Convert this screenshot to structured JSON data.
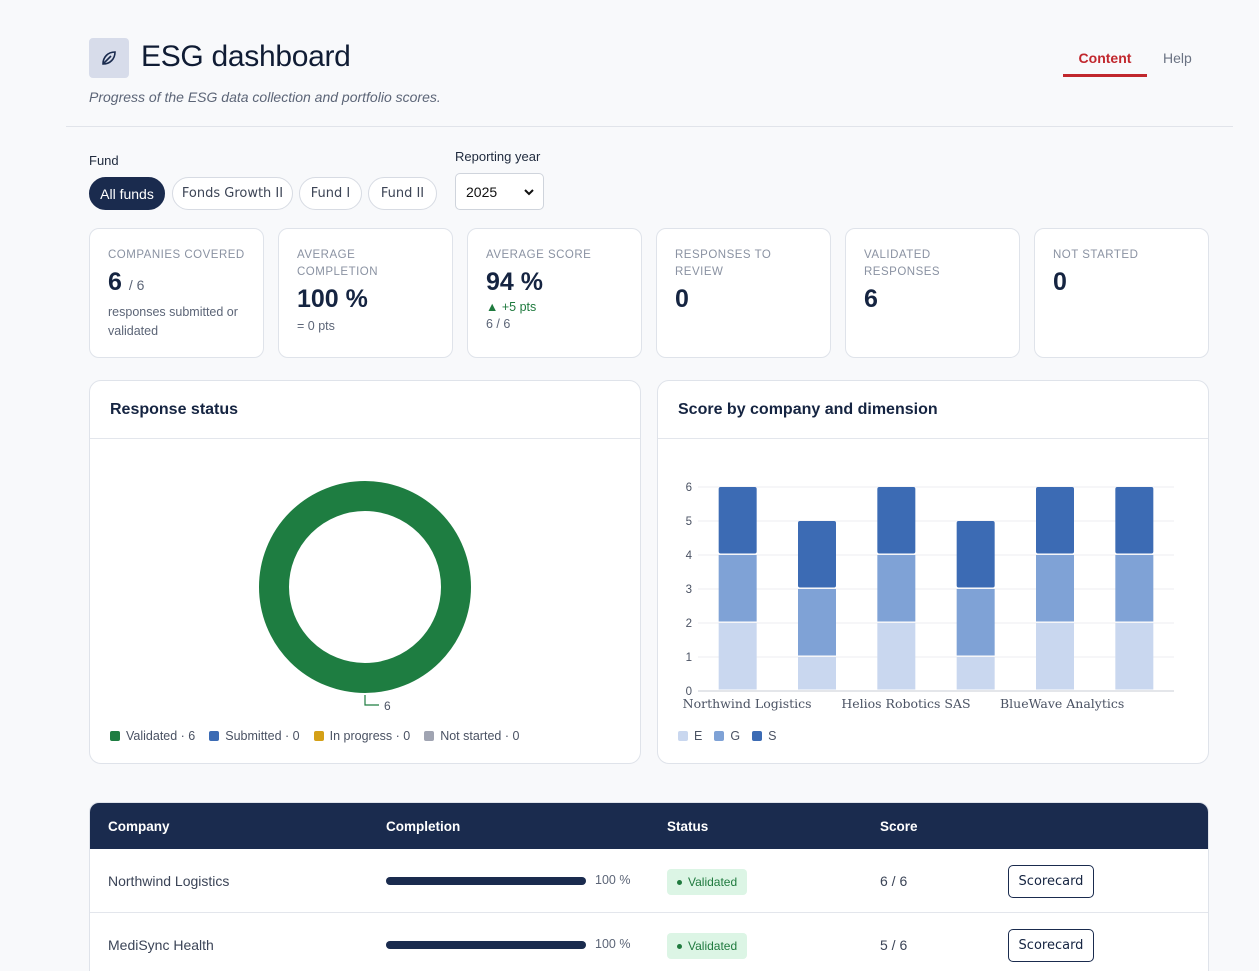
{
  "header": {
    "title": "ESG dashboard",
    "subtitle": "Progress of the ESG data collection and portfolio scores.",
    "logo_icon": "leaf-icon",
    "tabs": [
      {
        "label": "Content",
        "active": true
      },
      {
        "label": "Help",
        "active": false
      }
    ]
  },
  "filters": {
    "fund_label": "Fund",
    "funds": [
      {
        "label": "All funds",
        "active": true
      },
      {
        "label": "Fonds Growth II",
        "active": false
      },
      {
        "label": "Fund I",
        "active": false
      },
      {
        "label": "Fund II",
        "active": false
      }
    ],
    "year_label": "Reporting year",
    "year_value": "2025"
  },
  "kpis": [
    {
      "label": "COMPANIES COVERED",
      "value": "6",
      "of": "/ 6",
      "note": "responses submitted or validated"
    },
    {
      "label": "AVERAGE COMPLETION",
      "value": "100 %",
      "note": "= 0 pts"
    },
    {
      "label": "AVERAGE SCORE",
      "value": "94 %",
      "delta": "▲ +5 pts",
      "sub": "6 / 6"
    },
    {
      "label": "RESPONSES TO REVIEW",
      "value": "0"
    },
    {
      "label": "VALIDATED RESPONSES",
      "value": "6"
    },
    {
      "label": "NOT STARTED",
      "value": "0"
    }
  ],
  "status_panel": {
    "title": "Response status",
    "donut_label": "6",
    "legend": [
      {
        "label": "Validated · 6",
        "color": "#1e7d41"
      },
      {
        "label": "Submitted · 0",
        "color": "#3c6bb4"
      },
      {
        "label": "In progress · 0",
        "color": "#d4a017"
      },
      {
        "label": "Not started · 0",
        "color": "#a0a4b2"
      }
    ]
  },
  "score_panel": {
    "title": "Score by company and dimension",
    "legend": [
      {
        "label": "E",
        "color": "#c9d7ef"
      },
      {
        "label": "G",
        "color": "#7fa2d6"
      },
      {
        "label": "S",
        "color": "#3c6bb4"
      }
    ]
  },
  "chart_data": [
    {
      "type": "pie",
      "categories": [
        "Validated",
        "Submitted",
        "In progress",
        "Not started"
      ],
      "values": [
        6,
        0,
        0,
        0
      ],
      "title": "Response status"
    },
    {
      "type": "bar",
      "title": "Score by company and dimension",
      "categories": [
        "Northwind Logistics",
        "",
        "Helios Robotics SAS",
        "",
        "BlueWave Analytics",
        ""
      ],
      "series": [
        {
          "name": "E",
          "values": [
            2,
            1,
            2,
            1,
            2,
            2
          ]
        },
        {
          "name": "G",
          "values": [
            2,
            2,
            2,
            2,
            2,
            2
          ]
        },
        {
          "name": "S",
          "values": [
            2,
            2,
            2,
            2,
            2,
            2
          ]
        }
      ],
      "ylim": [
        0,
        6
      ],
      "yticks": [
        0,
        1,
        2,
        3,
        4,
        5,
        6
      ],
      "stacked": true,
      "grid": true,
      "legend": "bottom-left"
    }
  ],
  "table": {
    "columns": [
      "Company",
      "Completion",
      "Status",
      "Score"
    ],
    "rows": [
      {
        "company": "Northwind Logistics",
        "completion": "100 %",
        "completion_fraction": 1.0,
        "status": "Validated",
        "score": "6 / 6",
        "action": "Scorecard"
      },
      {
        "company": "MediSync Health",
        "completion": "100 %",
        "completion_fraction": 1.0,
        "status": "Validated",
        "score": "5 / 6",
        "action": "Scorecard"
      }
    ]
  }
}
